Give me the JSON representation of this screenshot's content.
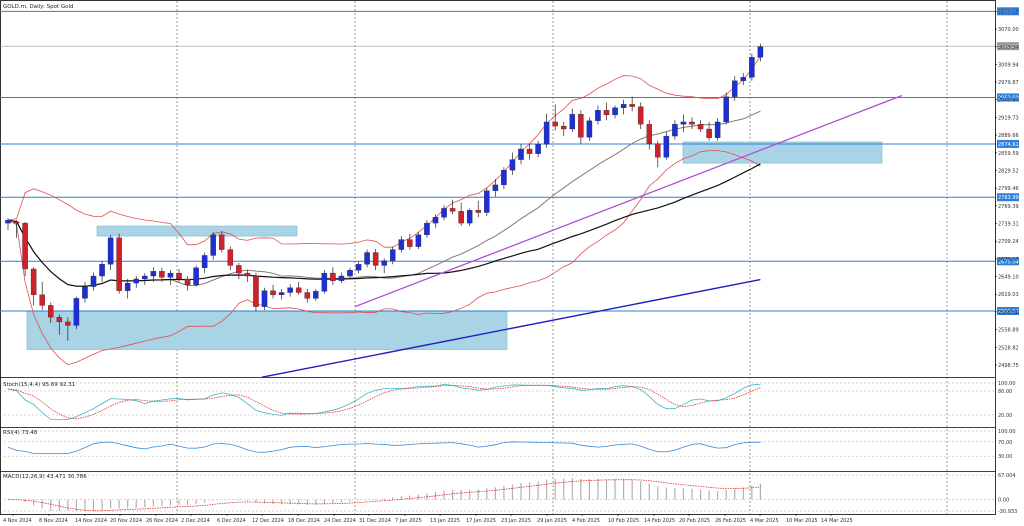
{
  "window": {
    "title": "GOLD.m, Daily:  Spot Gold"
  },
  "colors": {
    "bull_candle": "#1f2fd6",
    "bear_candle": "#d0202a",
    "bollinger": "#e05050",
    "ma_fast": "#8a7a70",
    "ma_slow": "#111111",
    "ma_long": "#2020c0",
    "trendline": "#b050d0",
    "level_line": "#2d7fdc",
    "zone_fill": "#a8d4e6",
    "stoch_main": "#3bb8c8",
    "stoch_signal": "#e03030",
    "rsi_line": "#3a8ad8",
    "macd_hist": "#b0b0b0",
    "macd_signal": "#e03030"
  },
  "chart_data": [
    {
      "type": "candlestick",
      "name": "price",
      "title": "GOLD.m, Daily:  Spot Gold",
      "y_ticks": [
        "3100.15",
        "3070.00",
        "3039.94",
        "3009.94",
        "2979.87",
        "2949.80",
        "2919.73",
        "2889.66",
        "2859.59",
        "2829.52",
        "2799.46",
        "2769.39",
        "2739.31",
        "2709.24",
        "2679.17",
        "2649.10",
        "2619.03",
        "2588.96",
        "2558.89",
        "2528.82",
        "2498.75"
      ],
      "ylim": [
        2480,
        3116
      ],
      "x_ticks": [
        "4 Nov 2024",
        "8 Nov 2024",
        "14 Nov 2024",
        "20 Nov 2024",
        "26 Nov 2024",
        "2 Dec 2024",
        "6 Dec 2024",
        "12 Dec 2024",
        "18 Dec 2024",
        "24 Dec 2024",
        "31 Dec 2024",
        "7 Jan 2025",
        "13 Jan 2025",
        "17 Jan 2025",
        "23 Jan 2025",
        "29 Jan 2025",
        "4 Feb 2025",
        "10 Feb 2025",
        "14 Feb 2025",
        "20 Feb 2025",
        "26 Feb 2025",
        "4 Mar 2025",
        "10 Mar 2025",
        "14 Mar 2025"
      ],
      "candles": [
        {
          "o": 2740,
          "h": 2748,
          "l": 2728,
          "c": 2745
        },
        {
          "o": 2742,
          "h": 2745,
          "l": 2715,
          "c": 2740
        },
        {
          "o": 2740,
          "h": 2742,
          "l": 2650,
          "c": 2662
        },
        {
          "o": 2662,
          "h": 2665,
          "l": 2600,
          "c": 2618
        },
        {
          "o": 2618,
          "h": 2640,
          "l": 2592,
          "c": 2600
        },
        {
          "o": 2600,
          "h": 2605,
          "l": 2570,
          "c": 2580
        },
        {
          "o": 2580,
          "h": 2585,
          "l": 2550,
          "c": 2572
        },
        {
          "o": 2572,
          "h": 2580,
          "l": 2540,
          "c": 2566
        },
        {
          "o": 2566,
          "h": 2615,
          "l": 2560,
          "c": 2612
        },
        {
          "o": 2612,
          "h": 2640,
          "l": 2605,
          "c": 2632
        },
        {
          "o": 2632,
          "h": 2656,
          "l": 2625,
          "c": 2650
        },
        {
          "o": 2650,
          "h": 2675,
          "l": 2640,
          "c": 2670
        },
        {
          "o": 2670,
          "h": 2720,
          "l": 2660,
          "c": 2715
        },
        {
          "o": 2715,
          "h": 2722,
          "l": 2620,
          "c": 2625
        },
        {
          "o": 2625,
          "h": 2645,
          "l": 2612,
          "c": 2638
        },
        {
          "o": 2638,
          "h": 2650,
          "l": 2630,
          "c": 2645
        },
        {
          "o": 2645,
          "h": 2655,
          "l": 2635,
          "c": 2650
        },
        {
          "o": 2650,
          "h": 2665,
          "l": 2640,
          "c": 2658
        },
        {
          "o": 2658,
          "h": 2664,
          "l": 2640,
          "c": 2648
        },
        {
          "o": 2648,
          "h": 2660,
          "l": 2635,
          "c": 2655
        },
        {
          "o": 2655,
          "h": 2662,
          "l": 2640,
          "c": 2645
        },
        {
          "o": 2645,
          "h": 2650,
          "l": 2625,
          "c": 2635
        },
        {
          "o": 2635,
          "h": 2668,
          "l": 2632,
          "c": 2664
        },
        {
          "o": 2664,
          "h": 2690,
          "l": 2655,
          "c": 2685
        },
        {
          "o": 2685,
          "h": 2725,
          "l": 2678,
          "c": 2720
        },
        {
          "o": 2720,
          "h": 2726,
          "l": 2690,
          "c": 2695
        },
        {
          "o": 2695,
          "h": 2700,
          "l": 2660,
          "c": 2668
        },
        {
          "o": 2668,
          "h": 2672,
          "l": 2645,
          "c": 2655
        },
        {
          "o": 2655,
          "h": 2660,
          "l": 2640,
          "c": 2650
        },
        {
          "o": 2650,
          "h": 2655,
          "l": 2590,
          "c": 2598
        },
        {
          "o": 2598,
          "h": 2630,
          "l": 2592,
          "c": 2625
        },
        {
          "o": 2625,
          "h": 2635,
          "l": 2612,
          "c": 2618
        },
        {
          "o": 2618,
          "h": 2628,
          "l": 2610,
          "c": 2622
        },
        {
          "o": 2622,
          "h": 2636,
          "l": 2615,
          "c": 2630
        },
        {
          "o": 2630,
          "h": 2640,
          "l": 2618,
          "c": 2622
        },
        {
          "o": 2622,
          "h": 2628,
          "l": 2605,
          "c": 2612
        },
        {
          "o": 2612,
          "h": 2628,
          "l": 2608,
          "c": 2624
        },
        {
          "o": 2624,
          "h": 2660,
          "l": 2620,
          "c": 2655
        },
        {
          "o": 2655,
          "h": 2665,
          "l": 2635,
          "c": 2642
        },
        {
          "o": 2642,
          "h": 2656,
          "l": 2638,
          "c": 2650
        },
        {
          "o": 2650,
          "h": 2664,
          "l": 2645,
          "c": 2660
        },
        {
          "o": 2660,
          "h": 2675,
          "l": 2655,
          "c": 2670
        },
        {
          "o": 2670,
          "h": 2695,
          "l": 2665,
          "c": 2690
        },
        {
          "o": 2690,
          "h": 2696,
          "l": 2660,
          "c": 2668
        },
        {
          "o": 2668,
          "h": 2680,
          "l": 2655,
          "c": 2676
        },
        {
          "o": 2676,
          "h": 2700,
          "l": 2670,
          "c": 2695
        },
        {
          "o": 2695,
          "h": 2718,
          "l": 2690,
          "c": 2712
        },
        {
          "o": 2712,
          "h": 2722,
          "l": 2695,
          "c": 2700
        },
        {
          "o": 2700,
          "h": 2725,
          "l": 2696,
          "c": 2720
        },
        {
          "o": 2720,
          "h": 2745,
          "l": 2715,
          "c": 2740
        },
        {
          "o": 2740,
          "h": 2755,
          "l": 2732,
          "c": 2750
        },
        {
          "o": 2750,
          "h": 2770,
          "l": 2745,
          "c": 2765
        },
        {
          "o": 2765,
          "h": 2780,
          "l": 2755,
          "c": 2760
        },
        {
          "o": 2760,
          "h": 2775,
          "l": 2735,
          "c": 2740
        },
        {
          "o": 2740,
          "h": 2765,
          "l": 2735,
          "c": 2762
        },
        {
          "o": 2762,
          "h": 2778,
          "l": 2750,
          "c": 2758
        },
        {
          "o": 2758,
          "h": 2800,
          "l": 2752,
          "c": 2795
        },
        {
          "o": 2795,
          "h": 2815,
          "l": 2785,
          "c": 2805
        },
        {
          "o": 2805,
          "h": 2835,
          "l": 2798,
          "c": 2830
        },
        {
          "o": 2830,
          "h": 2860,
          "l": 2822,
          "c": 2848
        },
        {
          "o": 2848,
          "h": 2875,
          "l": 2840,
          "c": 2866
        },
        {
          "o": 2866,
          "h": 2875,
          "l": 2848,
          "c": 2858
        },
        {
          "o": 2858,
          "h": 2880,
          "l": 2852,
          "c": 2874
        },
        {
          "o": 2874,
          "h": 2926,
          "l": 2868,
          "c": 2912
        },
        {
          "o": 2912,
          "h": 2942,
          "l": 2898,
          "c": 2905
        },
        {
          "o": 2905,
          "h": 2912,
          "l": 2888,
          "c": 2900
        },
        {
          "o": 2900,
          "h": 2935,
          "l": 2895,
          "c": 2925
        },
        {
          "o": 2925,
          "h": 2932,
          "l": 2875,
          "c": 2886
        },
        {
          "o": 2886,
          "h": 2920,
          "l": 2880,
          "c": 2914
        },
        {
          "o": 2914,
          "h": 2940,
          "l": 2908,
          "c": 2932
        },
        {
          "o": 2932,
          "h": 2945,
          "l": 2915,
          "c": 2924
        },
        {
          "o": 2924,
          "h": 2940,
          "l": 2918,
          "c": 2936
        },
        {
          "o": 2936,
          "h": 2950,
          "l": 2925,
          "c": 2942
        },
        {
          "o": 2942,
          "h": 2955,
          "l": 2930,
          "c": 2938
        },
        {
          "o": 2938,
          "h": 2945,
          "l": 2900,
          "c": 2908
        },
        {
          "o": 2908,
          "h": 2915,
          "l": 2865,
          "c": 2875
        },
        {
          "o": 2875,
          "h": 2880,
          "l": 2835,
          "c": 2852
        },
        {
          "o": 2852,
          "h": 2895,
          "l": 2848,
          "c": 2888
        },
        {
          "o": 2888,
          "h": 2915,
          "l": 2882,
          "c": 2908
        },
        {
          "o": 2908,
          "h": 2925,
          "l": 2895,
          "c": 2912
        },
        {
          "o": 2912,
          "h": 2920,
          "l": 2900,
          "c": 2908
        },
        {
          "o": 2908,
          "h": 2915,
          "l": 2895,
          "c": 2900
        },
        {
          "o": 2900,
          "h": 2912,
          "l": 2880,
          "c": 2885
        },
        {
          "o": 2885,
          "h": 2918,
          "l": 2880,
          "c": 2912
        },
        {
          "o": 2912,
          "h": 2962,
          "l": 2908,
          "c": 2955
        },
        {
          "o": 2955,
          "h": 2990,
          "l": 2948,
          "c": 2982
        },
        {
          "o": 2982,
          "h": 2995,
          "l": 2975,
          "c": 2988
        },
        {
          "o": 2988,
          "h": 3028,
          "l": 2982,
          "c": 3022
        },
        {
          "o": 3022,
          "h": 3045,
          "l": 3015,
          "c": 3040
        }
      ],
      "levels": [
        "3100.15",
        "3040.87",
        "2953.69",
        "2874.61",
        "2783.99",
        "2675.04",
        "2590.54"
      ]
    },
    {
      "type": "line",
      "name": "stochastic",
      "title": "Stoch(15,4,4) 95.69 92.31",
      "y_ticks": [
        "100.00",
        "80.00",
        "20.00"
      ],
      "ylim": [
        0,
        100
      ]
    },
    {
      "type": "line",
      "name": "rsi",
      "title": "RSI(4) 73.48",
      "y_ticks": [
        "100.00",
        "70.00",
        "30.00"
      ],
      "ylim": [
        0,
        100
      ]
    },
    {
      "type": "bar",
      "name": "macd",
      "title": "MACD(12,26,9) 43.471 30.786",
      "y_ticks": [
        "67.004",
        "0.00",
        "-30.933"
      ],
      "ylim": [
        -30.933,
        67.004
      ]
    }
  ]
}
